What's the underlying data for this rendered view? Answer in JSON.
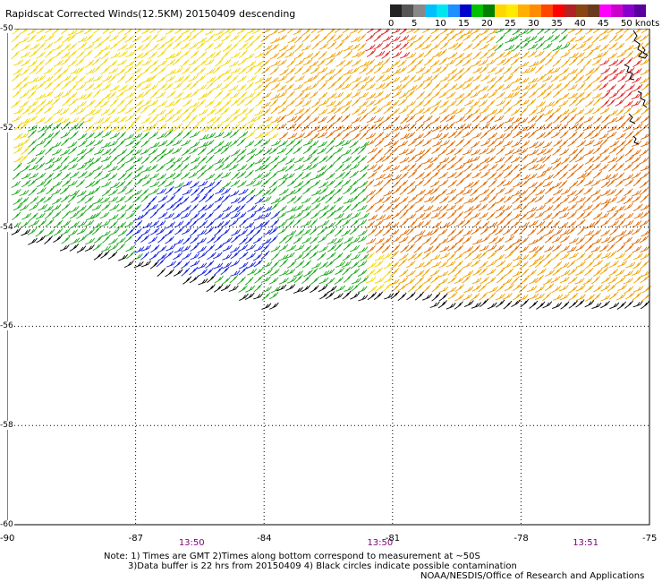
{
  "title": "Rapidscat Corrected Winds(12.5KM) 20150409 descending",
  "colorbar": {
    "colors": [
      "#222222",
      "#555555",
      "#888888",
      "#00bfff",
      "#00e5ee",
      "#1e90ff",
      "#0000cd",
      "#00c000",
      "#008000",
      "#ffd700",
      "#ffea00",
      "#ffb000",
      "#ff8c00",
      "#ff4500",
      "#ff0000",
      "#b22222",
      "#8b4513",
      "#6b3a1e",
      "#ff00ff",
      "#cc00cc",
      "#8800cc",
      "#5a00a0"
    ],
    "labels": [
      "0",
      "5",
      "10",
      "15",
      "20",
      "25",
      "30",
      "35",
      "40",
      "45",
      "50 knots"
    ]
  },
  "map": {
    "lon_min": -90,
    "lon_max": -75,
    "lat_top": -50,
    "lat_bottom": -60,
    "x_ticks": [
      {
        "value": -90,
        "label": "-90"
      },
      {
        "value": -87,
        "label": "-87"
      },
      {
        "value": -84,
        "label": "-84"
      },
      {
        "value": -81,
        "label": "-81"
      },
      {
        "value": -78,
        "label": "-78"
      },
      {
        "value": -75,
        "label": "-75"
      }
    ],
    "y_ticks": [
      {
        "value": -50,
        "label": "-50"
      },
      {
        "value": -52,
        "label": "-52"
      },
      {
        "value": -54,
        "label": "-54"
      },
      {
        "value": -56,
        "label": "-56"
      },
      {
        "value": -58,
        "label": "-58"
      },
      {
        "value": -60,
        "label": "-60"
      }
    ]
  },
  "times": [
    {
      "lon": -85.7,
      "label": "13:50"
    },
    {
      "lon": -81.3,
      "label": "13:50"
    },
    {
      "lon": -76.5,
      "label": "13:51"
    }
  ],
  "notes": {
    "line1": "Note: 1) Times are GMT 2)Times along bottom correspond to measurement at ~50S",
    "line2": "3)Data buffer is 22 hrs from 20150409 4) Black circles indicate possible contamination"
  },
  "credit": "NOAA/NESDIS/Office of Research and Applications",
  "wind_regions": {
    "swath_note": "colored wind barbs over the swath",
    "colors": {
      "yellow": "#f2d600",
      "orange": "#f0a000",
      "dark_orange": "#e06a00",
      "green": "#1aa81a",
      "blue": "#1020e0",
      "black": "#000000",
      "red": "#e02020"
    }
  }
}
